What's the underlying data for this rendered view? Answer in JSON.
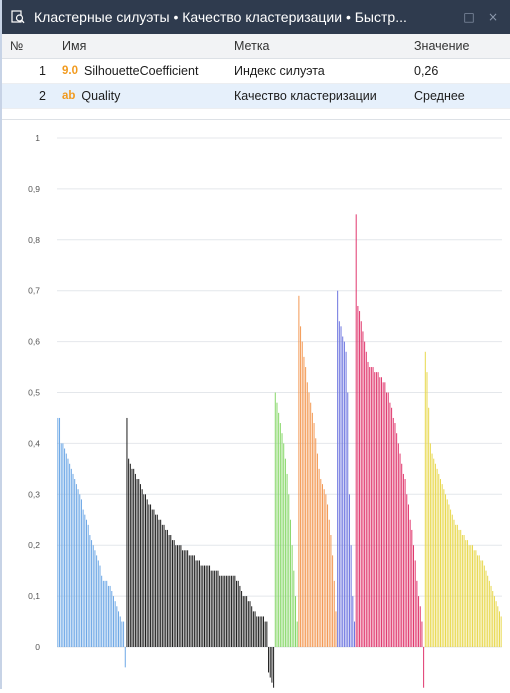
{
  "window": {
    "title": "Кластерные силуэты • Качество кластеризации • Быстр...",
    "maximize_glyph": "□",
    "close_glyph": "×"
  },
  "table": {
    "headers": {
      "num": "№",
      "name": "Имя",
      "label": "Метка",
      "value": "Значение"
    },
    "rows": [
      {
        "num": "1",
        "type_badge": "9.0",
        "name": "SilhouetteCoefficient",
        "label": "Индекс силуэта",
        "value": "0,26"
      },
      {
        "num": "2",
        "type_badge": "ab",
        "name": "Quality",
        "label": "Качество кластеризации",
        "value": "Среднее"
      }
    ]
  },
  "chart_data": {
    "type": "bar",
    "ylim": [
      -0.08,
      1
    ],
    "yticks": [
      "1",
      "0,9",
      "0,8",
      "0,7",
      "0,6",
      "0,5",
      "0,4",
      "0,3",
      "0,2",
      "0,1",
      "0"
    ],
    "ytick_values": [
      1,
      0.9,
      0.8,
      0.7,
      0.6,
      0.5,
      0.4,
      0.3,
      0.2,
      0.1,
      0
    ],
    "series": [
      {
        "color": "#6ea8e6",
        "values": [
          0.45,
          0.45,
          0.4,
          0.4,
          0.39,
          0.38,
          0.37,
          0.36,
          0.35,
          0.34,
          0.33,
          0.32,
          0.31,
          0.3,
          0.29,
          0.27,
          0.26,
          0.25,
          0.24,
          0.22,
          0.21,
          0.2,
          0.19,
          0.18,
          0.17,
          0.16,
          0.14,
          0.13,
          0.13,
          0.13,
          0.12,
          0.12,
          0.11,
          0.1,
          0.09,
          0.08,
          0.07,
          0.06,
          0.05,
          0.05,
          -0.04
        ]
      },
      {
        "color": "#1e1e1e",
        "values": [
          0.45,
          0.37,
          0.36,
          0.35,
          0.35,
          0.34,
          0.33,
          0.33,
          0.32,
          0.31,
          0.3,
          0.3,
          0.29,
          0.28,
          0.28,
          0.27,
          0.27,
          0.26,
          0.26,
          0.25,
          0.25,
          0.24,
          0.24,
          0.23,
          0.23,
          0.22,
          0.22,
          0.21,
          0.21,
          0.2,
          0.2,
          0.2,
          0.2,
          0.19,
          0.19,
          0.19,
          0.19,
          0.18,
          0.18,
          0.18,
          0.18,
          0.17,
          0.17,
          0.17,
          0.16,
          0.16,
          0.16,
          0.16,
          0.16,
          0.16,
          0.15,
          0.15,
          0.15,
          0.15,
          0.15,
          0.14,
          0.14,
          0.14,
          0.14,
          0.14,
          0.14,
          0.14,
          0.14,
          0.14,
          0.14,
          0.13,
          0.13,
          0.12,
          0.11,
          0.1,
          0.1,
          0.1,
          0.09,
          0.09,
          0.08,
          0.07,
          0.07,
          0.06,
          0.06,
          0.06,
          0.06,
          0.06,
          0.05,
          0.05,
          -0.05,
          -0.06,
          -0.07,
          -0.08
        ]
      },
      {
        "color": "#88d86a",
        "values": [
          0.5,
          0.48,
          0.46,
          0.44,
          0.42,
          0.4,
          0.37,
          0.34,
          0.3,
          0.25,
          0.2,
          0.15,
          0.1,
          0.05
        ]
      },
      {
        "color": "#f39a55",
        "values": [
          0.69,
          0.63,
          0.6,
          0.57,
          0.55,
          0.52,
          0.5,
          0.48,
          0.46,
          0.44,
          0.41,
          0.38,
          0.35,
          0.33,
          0.32,
          0.31,
          0.3,
          0.28,
          0.25,
          0.22,
          0.18,
          0.13,
          0.07
        ]
      },
      {
        "color": "#6f77e0",
        "values": [
          0.7,
          0.64,
          0.63,
          0.61,
          0.6,
          0.58,
          0.5,
          0.3,
          0.2,
          0.1,
          0.05
        ]
      },
      {
        "color": "#e0386e",
        "values": [
          0.85,
          0.67,
          0.66,
          0.64,
          0.62,
          0.6,
          0.58,
          0.56,
          0.55,
          0.55,
          0.55,
          0.54,
          0.54,
          0.54,
          0.53,
          0.53,
          0.52,
          0.52,
          0.5,
          0.5,
          0.48,
          0.47,
          0.45,
          0.44,
          0.42,
          0.4,
          0.38,
          0.36,
          0.34,
          0.33,
          0.3,
          0.28,
          0.25,
          0.23,
          0.2,
          0.17,
          0.13,
          0.1,
          0.08,
          0.05,
          -0.08
        ]
      },
      {
        "color": "#e8d84e",
        "values": [
          0.58,
          0.54,
          0.47,
          0.4,
          0.38,
          0.37,
          0.36,
          0.35,
          0.34,
          0.33,
          0.32,
          0.31,
          0.3,
          0.29,
          0.28,
          0.27,
          0.26,
          0.25,
          0.24,
          0.24,
          0.23,
          0.23,
          0.22,
          0.22,
          0.21,
          0.21,
          0.2,
          0.2,
          0.2,
          0.19,
          0.19,
          0.18,
          0.18,
          0.17,
          0.17,
          0.16,
          0.15,
          0.14,
          0.13,
          0.12,
          0.11,
          0.1,
          0.09,
          0.08,
          0.07,
          0.06
        ]
      }
    ]
  }
}
